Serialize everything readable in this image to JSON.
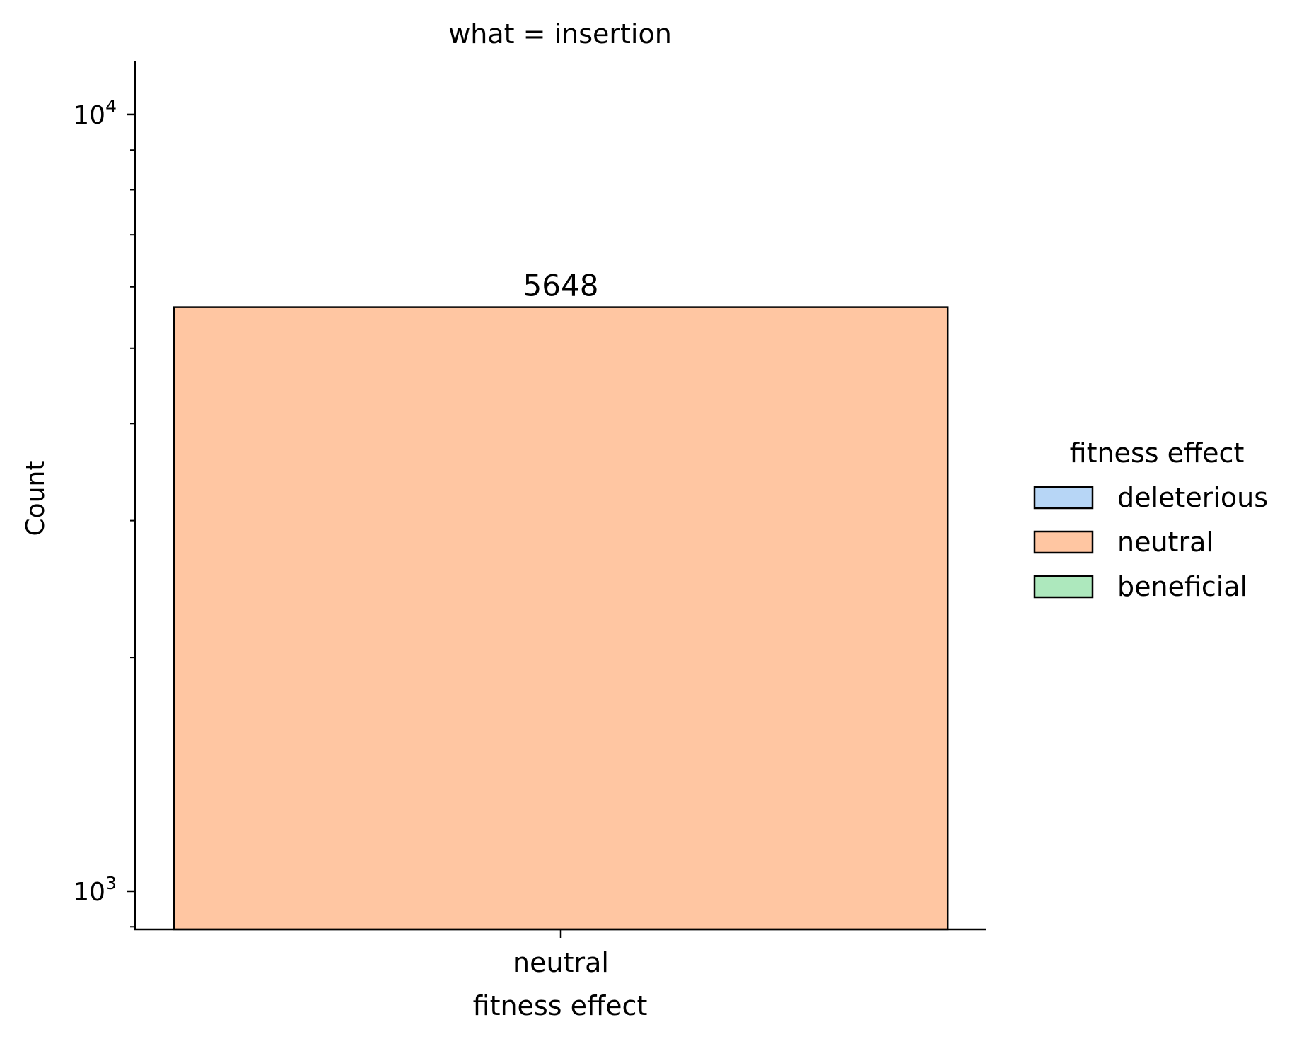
{
  "chart_data": {
    "type": "bar",
    "title": "what = insertion",
    "xlabel": "fitness effect",
    "ylabel": "Count",
    "categories": [
      "neutral"
    ],
    "values": [
      5648
    ],
    "value_labels": [
      "5648"
    ],
    "bar_colors": [
      "#ffc6a2"
    ],
    "y_scale": "log",
    "ylim": [
      893,
      11700
    ],
    "y_major_ticks": [
      1000,
      10000
    ],
    "y_tick_labels": [
      {
        "base": "10",
        "exp": "3"
      },
      {
        "base": "10",
        "exp": "4"
      }
    ],
    "grid": false,
    "legend": {
      "title": "fitness effect",
      "placement": "right",
      "entries": [
        {
          "label": "deleterious",
          "color": "#b7d6f6"
        },
        {
          "label": "neutral",
          "color": "#ffc6a2"
        },
        {
          "label": "beneficial",
          "color": "#ade8bd"
        }
      ]
    }
  }
}
